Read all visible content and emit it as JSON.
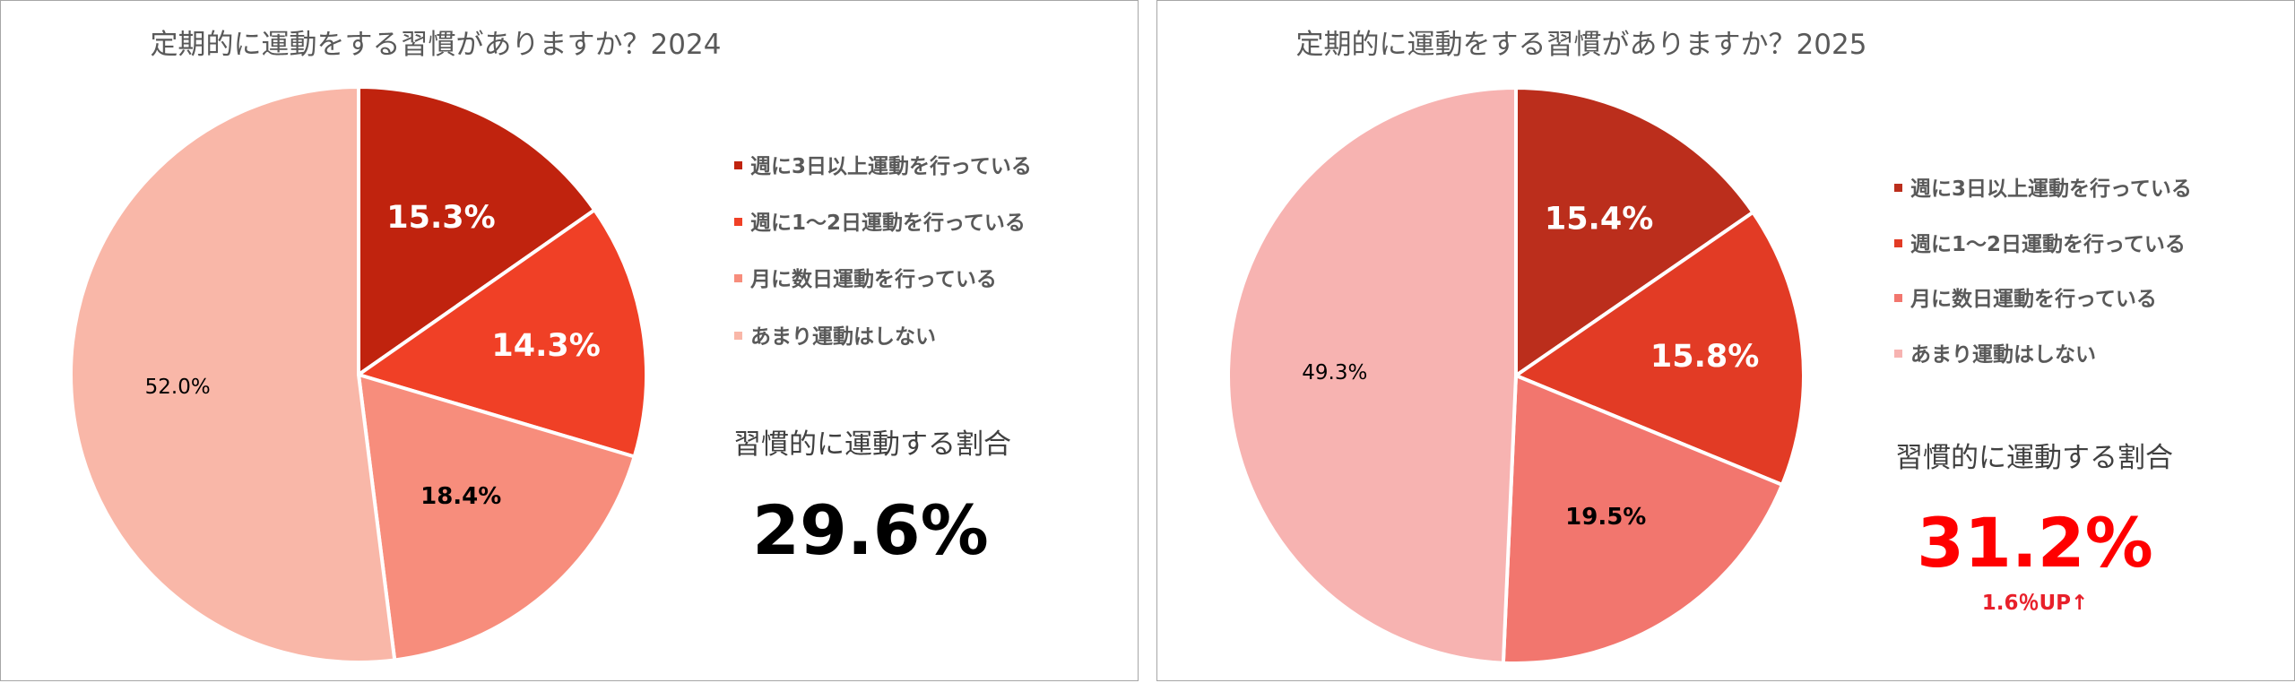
{
  "chart_data": [
    {
      "type": "pie",
      "title": "定期的に運動をする習慣がありますか？2024",
      "categories": [
        "週に3日以上運動を行っている",
        "週に1～2日運動を行っている",
        "月に数日運動を行っている",
        "あまり運動はしない"
      ],
      "values": [
        15.3,
        14.3,
        18.4,
        52.0
      ],
      "labels": [
        "15.3%",
        "14.3%",
        "18.4%",
        "52.0%"
      ],
      "colors": [
        "#c0230e",
        "#f04026",
        "#f78d7c",
        "#f9b7a8"
      ],
      "legend_position": "right",
      "summary": {
        "label": "習慣的に運動する割合",
        "value": "29.6%",
        "value_color": "#000000",
        "note": ""
      }
    },
    {
      "type": "pie",
      "title": "定期的に運動をする習慣がありますか？2025",
      "categories": [
        "週に3日以上運動を行っている",
        "週に1～2日運動を行っている",
        "月に数日運動を行っている",
        "あまり運動はしない"
      ],
      "values": [
        15.4,
        15.8,
        19.5,
        49.3
      ],
      "labels": [
        "15.4%",
        "15.8%",
        "19.5%",
        "49.3%"
      ],
      "colors": [
        "#bb2e1c",
        "#e23b25",
        "#f2766e",
        "#f7b3b1"
      ],
      "legend_position": "right",
      "summary": {
        "label": "習慣的に運動する割合",
        "value": "31.2%",
        "value_color": "#ff0000",
        "note": "1.6％UP↑",
        "note_color": "#e8202a"
      }
    }
  ]
}
